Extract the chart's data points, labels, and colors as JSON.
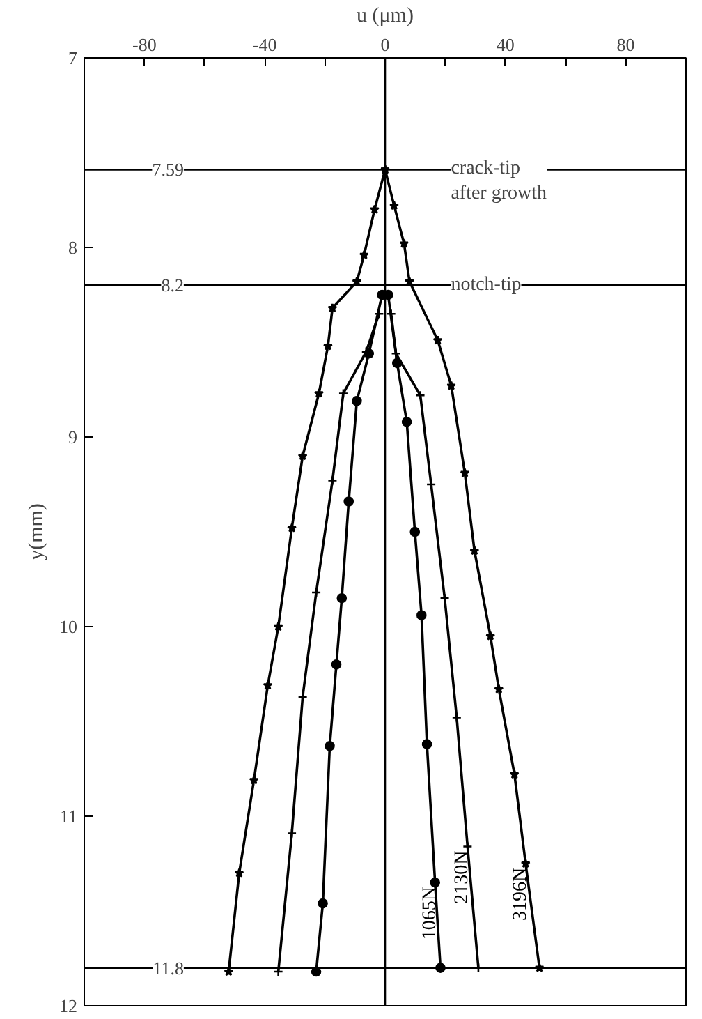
{
  "chart_data": {
    "type": "line",
    "xlabel": "u (μm)",
    "ylabel": "y(mm)",
    "xlim": [
      -100,
      100
    ],
    "ylim": [
      12,
      7
    ],
    "xticks": [
      -80,
      {
        "value": -60,
        "label": null
      },
      -40,
      {
        "value": -20,
        "label": null
      },
      0,
      {
        "value": 20,
        "label": null
      },
      40,
      {
        "value": 60,
        "label": null
      },
      80
    ],
    "yticks": [
      7,
      8,
      9,
      10,
      11,
      12
    ],
    "grid": false,
    "legend": false,
    "line_style": "solid",
    "series": [
      {
        "color": "#000000",
        "marker": "star",
        "x": [
          0,
          -3.5,
          -7,
          -9.4,
          -17.5,
          -19,
          -22,
          -27.4,
          -31,
          -35.5,
          -39,
          -43.6,
          -48.5,
          -52
        ],
        "values": [
          7.59,
          7.8,
          8.04,
          8.18,
          8.32,
          8.52,
          8.77,
          9.1,
          9.48,
          10.0,
          10.31,
          10.81,
          11.3,
          11.82
        ]
      },
      {
        "name": "3196N",
        "color": "#000000",
        "marker": "star",
        "x": [
          0,
          3,
          6.3,
          8.1,
          17.5,
          22,
          26.5,
          29.7,
          35,
          37.8,
          43,
          46.7,
          51.3
        ],
        "values": [
          7.59,
          7.78,
          7.98,
          8.18,
          8.49,
          8.73,
          9.19,
          9.6,
          10.05,
          10.33,
          10.78,
          11.25,
          11.8
        ]
      },
      {
        "color": "#000000",
        "marker": "cross",
        "x": [
          -2,
          -6.3,
          -13.9,
          -17.5,
          -22.9,
          -27.4,
          -31,
          -35.5
        ],
        "values": [
          8.35,
          8.55,
          8.77,
          9.23,
          9.82,
          10.37,
          11.09,
          11.82
        ]
      },
      {
        "name": "2130N",
        "color": "#000000",
        "marker": "cross",
        "x": [
          2,
          3.6,
          11.7,
          15.3,
          19.8,
          23.8,
          27.4,
          31
        ],
        "values": [
          8.35,
          8.56,
          8.78,
          9.25,
          9.85,
          10.48,
          11.16,
          11.8
        ]
      },
      {
        "color": "#000000",
        "marker": "circle",
        "x": [
          -1,
          -5.4,
          -9.4,
          -12.1,
          -14.4,
          -16.2,
          -18.4,
          -20.7,
          -22.9
        ],
        "values": [
          8.25,
          8.56,
          8.81,
          9.34,
          9.85,
          10.2,
          10.63,
          11.46,
          11.82
        ]
      },
      {
        "name": "1065N",
        "color": "#000000",
        "marker": "circle",
        "x": [
          1,
          4,
          7.2,
          9.9,
          12.1,
          13.9,
          16.6,
          18.4
        ],
        "values": [
          8.25,
          8.61,
          8.92,
          9.5,
          9.94,
          10.62,
          11.35,
          11.8
        ]
      }
    ],
    "ref_lines": [
      {
        "axis": "y",
        "value": 7.59,
        "label": "7.59"
      },
      {
        "axis": "y",
        "value": 8.2,
        "label": "8.2"
      },
      {
        "axis": "y",
        "value": 11.8,
        "label": "11.8"
      },
      {
        "axis": "x",
        "value": 0
      }
    ],
    "annotations": [
      {
        "text": "crack-tip\nafter growth",
        "x": 20,
        "y": 7.59
      },
      {
        "text": "notch-tip",
        "x": 20,
        "y": 8.2
      }
    ]
  }
}
